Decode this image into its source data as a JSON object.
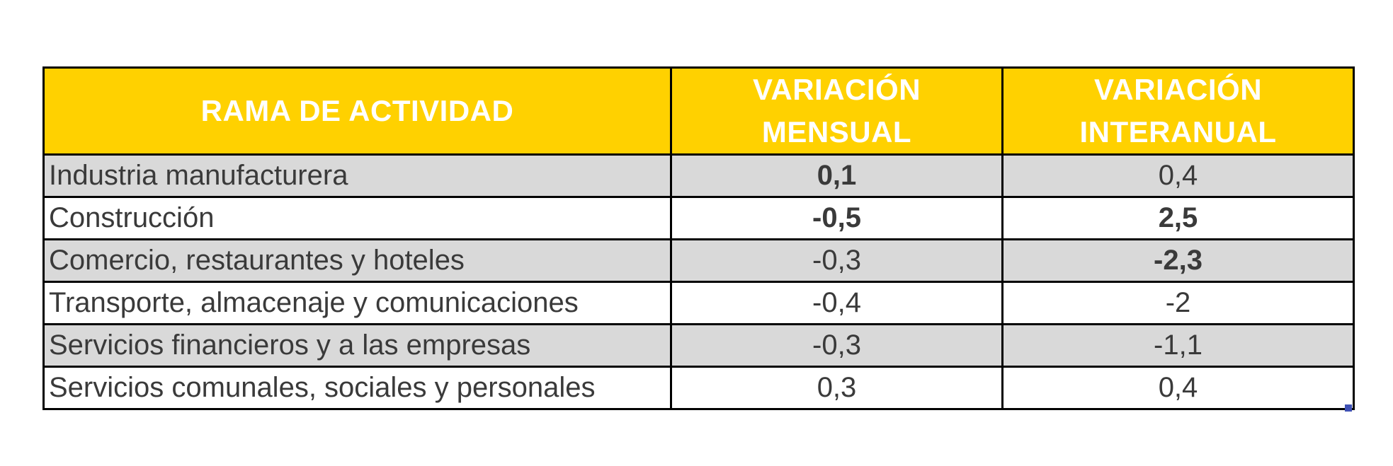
{
  "table": {
    "headers": {
      "rama": "RAMA DE ACTIVIDAD",
      "mensual_line1": "VARIACIÓN",
      "mensual_line2": "MENSUAL",
      "interanual_line1": "VARIACIÓN",
      "interanual_line2": "INTERANUAL"
    },
    "header_color": "#FFD100",
    "row_shade_color": "#D9D9D9",
    "rows": [
      {
        "rama": "Industria manufacturera",
        "mensual": "0,1",
        "interanual": "0,4",
        "mensual_bold": true,
        "interanual_bold": false,
        "shaded": true
      },
      {
        "rama": "Construcción",
        "mensual": "-0,5",
        "interanual": "2,5",
        "mensual_bold": true,
        "interanual_bold": true,
        "shaded": false
      },
      {
        "rama": "Comercio, restaurantes y hoteles",
        "mensual": "-0,3",
        "interanual": "-2,3",
        "mensual_bold": false,
        "interanual_bold": true,
        "shaded": true
      },
      {
        "rama": "Transporte, almacenaje y comunicaciones",
        "mensual": "-0,4",
        "interanual": "-2",
        "mensual_bold": false,
        "interanual_bold": false,
        "shaded": false
      },
      {
        "rama": "Servicios financieros y a las empresas",
        "mensual": "-0,3",
        "interanual": "-1,1",
        "mensual_bold": false,
        "interanual_bold": false,
        "shaded": true
      },
      {
        "rama": "Servicios comunales, sociales y personales",
        "mensual": "0,3",
        "interanual": "0,4",
        "mensual_bold": false,
        "interanual_bold": false,
        "shaded": false
      }
    ]
  }
}
